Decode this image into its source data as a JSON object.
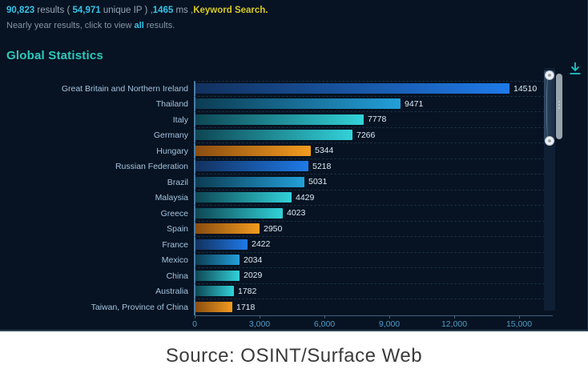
{
  "summary": {
    "results_count": "90,823",
    "results_text": " results ( ",
    "unique_ip_count": "54,971",
    "unique_ip_text": " unique IP ) ,",
    "time_value": "1465",
    "time_text": " ms ,",
    "keyword_text": "Keyword Search.",
    "line2_prefix": "Nearly year results, click to view ",
    "line2_all": "all",
    "line2_suffix": " results."
  },
  "section_title": "Global Statistics",
  "icons": {
    "download": "download-tray-arrow",
    "zoom_slider_handles": "circle-drag-handle"
  },
  "colors": {
    "panel_background": "#071322",
    "accent_cyan": "#35c3e8",
    "accent_yellow": "#d6ca25",
    "title_teal": "#2cc9bd",
    "category_label": "#a4c4de",
    "axis_tick_label": "#4f9dc9",
    "value_label": "#dcebf5",
    "download_icon": "#20c2c8"
  },
  "chart_data": {
    "type": "bar",
    "orientation": "horizontal",
    "title": "Global Statistics",
    "xlabel": "",
    "ylabel": "",
    "legend": "none",
    "grid": "dashed-horizontal",
    "value_labels": true,
    "xlim": [
      0,
      15000
    ],
    "x_ticks": [
      "0",
      "3,000",
      "6,000",
      "9,000",
      "12,000",
      "15,000"
    ],
    "x_tick_values": [
      0,
      3000,
      6000,
      9000,
      12000,
      15000
    ],
    "categories": [
      "Great Britain and Northern Ireland",
      "Thailand",
      "Italy",
      "Germany",
      "Hungary",
      "Russian Federation",
      "Brazil",
      "Malaysia",
      "Greece",
      "Spain",
      "France",
      "Mexico",
      "China",
      "Australia",
      "Taiwan, Province of China"
    ],
    "values": [
      14510,
      9471,
      7778,
      7266,
      5344,
      5218,
      5031,
      4429,
      4023,
      2950,
      2422,
      2034,
      2029,
      1782,
      1718
    ],
    "bar_colors": [
      "blue",
      "teal",
      "cyan",
      "cyan",
      "orange",
      "blue",
      "teal",
      "cyan",
      "cyan",
      "orange",
      "blue",
      "teal",
      "cyan",
      "cyan",
      "orange"
    ],
    "palette": {
      "blue": {
        "from": "#12315e",
        "to": "#1e7ae8"
      },
      "teal": {
        "from": "#0c3c52",
        "to": "#239fd9"
      },
      "cyan": {
        "from": "#0d4653",
        "to": "#32d2d9"
      },
      "orange": {
        "from": "#8a4d10",
        "to": "#f29b1f"
      }
    }
  },
  "source_caption": "Source: OSINT/Surface Web"
}
